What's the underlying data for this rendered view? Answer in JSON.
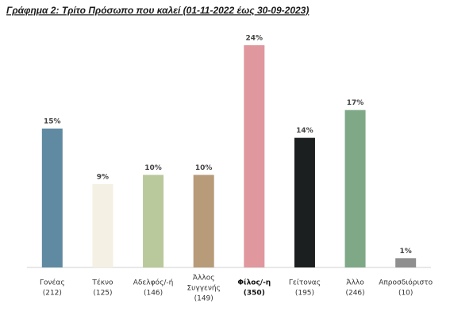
{
  "chart_data": {
    "type": "bar",
    "title": "Γράφημα 2: Τρίτο Πρόσωπο που καλεί (01-11-2022 έως 30-09-2023)",
    "categories": [
      [
        "Γονέας",
        "(212)"
      ],
      [
        "Τέκνο",
        "(125)"
      ],
      [
        "Αδελφός/-ή",
        "(146)"
      ],
      [
        "Άλλος",
        "Συγγενής",
        "(149)"
      ],
      [
        "Φίλος/-η",
        "(350)"
      ],
      [
        "Γείτονας",
        "(195)"
      ],
      [
        "Άλλο",
        "(246)"
      ],
      [
        "Απροσδιόριστο",
        "(10)"
      ]
    ],
    "values": [
      15,
      9,
      10,
      10,
      24,
      14,
      17,
      1
    ],
    "value_labels": [
      "15%",
      "9%",
      "10%",
      "10%",
      "24%",
      "14%",
      "17%",
      "1%"
    ],
    "colors": [
      "#5f8aa1",
      "#f4f0e4",
      "#b9c99b",
      "#b89b79",
      "#e0979d",
      "#1c1f1f",
      "#7fa887",
      "#8f8f8f"
    ]
  }
}
